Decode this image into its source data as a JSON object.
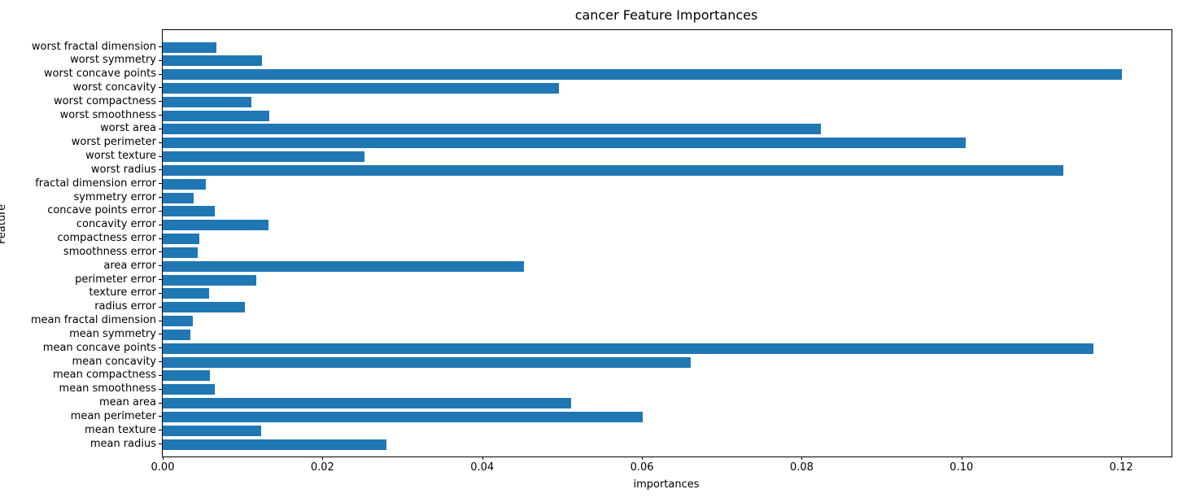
{
  "figure": {
    "title": "cancer Feature Importances",
    "xlabel": "importances",
    "ylabel": "Feature"
  },
  "chart_data": {
    "type": "bar",
    "orientation": "horizontal",
    "title": "cancer Feature Importances",
    "xlabel": "importances",
    "ylabel": "Feature",
    "bar_color": "#1f77b4",
    "xlim": [
      0.0,
      0.1263
    ],
    "xticks": [
      0.0,
      0.02,
      0.04,
      0.06,
      0.08,
      0.1,
      0.12
    ],
    "xtick_labels": [
      "0.00",
      "0.02",
      "0.04",
      "0.06",
      "0.08",
      "0.10",
      "0.12"
    ],
    "grid": false,
    "legend": false,
    "row_order": "top-to-bottom",
    "categories": [
      "worst fractal dimension",
      "worst symmetry",
      "worst concave points",
      "worst concavity",
      "worst compactness",
      "worst smoothness",
      "worst area",
      "worst perimeter",
      "worst texture",
      "worst radius",
      "fractal dimension error",
      "symmetry error",
      "concave points error",
      "concavity error",
      "compactness error",
      "smoothness error",
      "area error",
      "perimeter error",
      "texture error",
      "radius error",
      "mean fractal dimension",
      "mean symmetry",
      "mean concave points",
      "mean concavity",
      "mean compactness",
      "mean smoothness",
      "mean area",
      "mean perimeter",
      "mean texture",
      "mean radius"
    ],
    "values": [
      0.0067,
      0.0124,
      0.1201,
      0.0496,
      0.0111,
      0.0133,
      0.0824,
      0.1005,
      0.0253,
      0.1128,
      0.0054,
      0.0039,
      0.0065,
      0.0132,
      0.0046,
      0.0044,
      0.0452,
      0.0117,
      0.0058,
      0.0103,
      0.0038,
      0.0035,
      0.1165,
      0.0661,
      0.0059,
      0.0065,
      0.0511,
      0.0601,
      0.0123,
      0.028
    ]
  }
}
